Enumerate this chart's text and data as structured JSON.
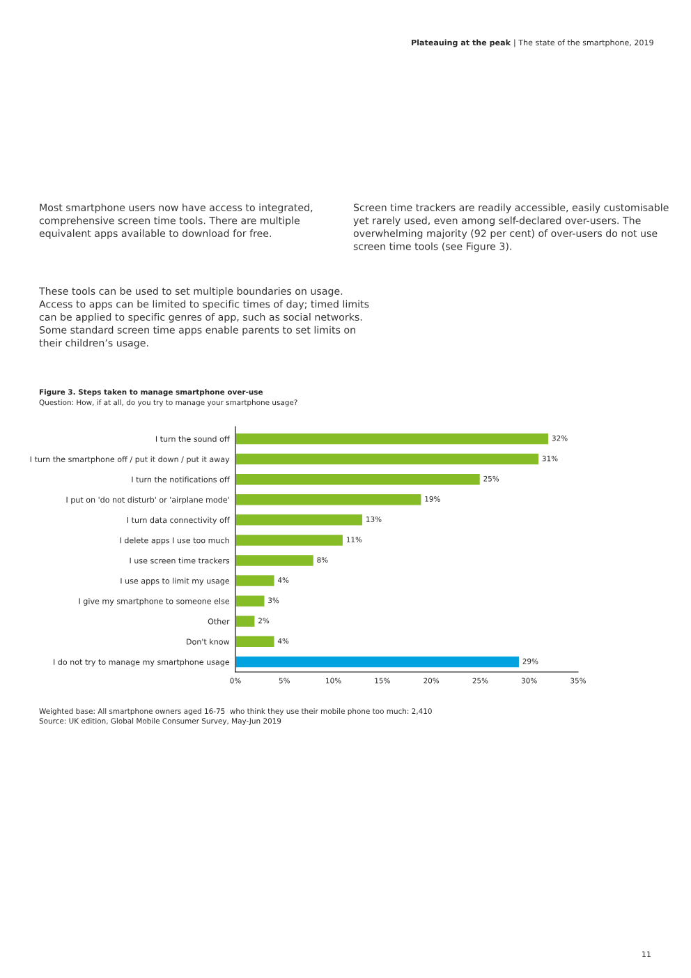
{
  "chart_data": {
    "type": "bar",
    "orientation": "horizontal",
    "title": "Figure 3. Steps taken to manage smartphone over-use",
    "subtitle": "Question: How, if at all, do you try to manage your smartphone usage?",
    "categories": [
      "I turn the sound off",
      "I turn the smartphone off / put it down / put it away",
      "I turn the notifications off",
      "I put on 'do not disturb' or 'airplane mode'",
      "I turn data connectivity off",
      "I delete apps I use too much",
      "I use screen time trackers",
      "I use apps to limit my usage",
      "I give my smartphone to someone else",
      "Other",
      "Don't know",
      "I do not try to manage my smartphone usage"
    ],
    "values": [
      32,
      31,
      25,
      19,
      13,
      11,
      8,
      4,
      3,
      2,
      4,
      29
    ],
    "value_labels": [
      "32%",
      "31%",
      "25%",
      "19%",
      "13%",
      "11%",
      "8%",
      "4%",
      "3%",
      "2%",
      "4%",
      "29%"
    ],
    "colors": [
      "#86bc25",
      "#86bc25",
      "#86bc25",
      "#86bc25",
      "#86bc25",
      "#86bc25",
      "#86bc25",
      "#86bc25",
      "#86bc25",
      "#86bc25",
      "#86bc25",
      "#00a3e0"
    ],
    "xlim": [
      0,
      35
    ],
    "xticks": [
      {
        "value": 0,
        "label": "0%"
      },
      {
        "value": 5,
        "label": "5%"
      },
      {
        "value": 10,
        "label": "10%"
      },
      {
        "value": 15,
        "label": "15%"
      },
      {
        "value": 20,
        "label": "20%"
      },
      {
        "value": 25,
        "label": "25%"
      },
      {
        "value": 30,
        "label": "30%"
      },
      {
        "value": 35,
        "label": "35%"
      }
    ],
    "grid": false,
    "legend": false,
    "annotations": [
      "Plateauing at the peak",
      "| The state of the smartphone, 2019",
      "Most smartphone users now have access to integrated,\ncomprehensive screen time tools. There are multiple\nequivalent apps available to download for free.",
      "These tools can be used to set multiple boundaries on usage.\nAccess to apps can be limited to specific times of day; timed limits\ncan be applied to specific genres of app, such as social networks.\nSome standard screen time apps enable parents to set limits on\ntheir children’s usage.",
      "Screen time trackers are readily accessible, easily customisable\nyet rarely used, even among self-declared over-users. The\noverwhelming majority (92 per cent) of over-users do not use\nscreen time tools (see Figure 3).",
      "Weighted base: All smartphone owners aged 16-75  who think they use their mobile phone too much: 2,410\nSource: UK edition, Global Mobile Consumer Survey, May-Jun 2019",
      "11"
    ]
  }
}
